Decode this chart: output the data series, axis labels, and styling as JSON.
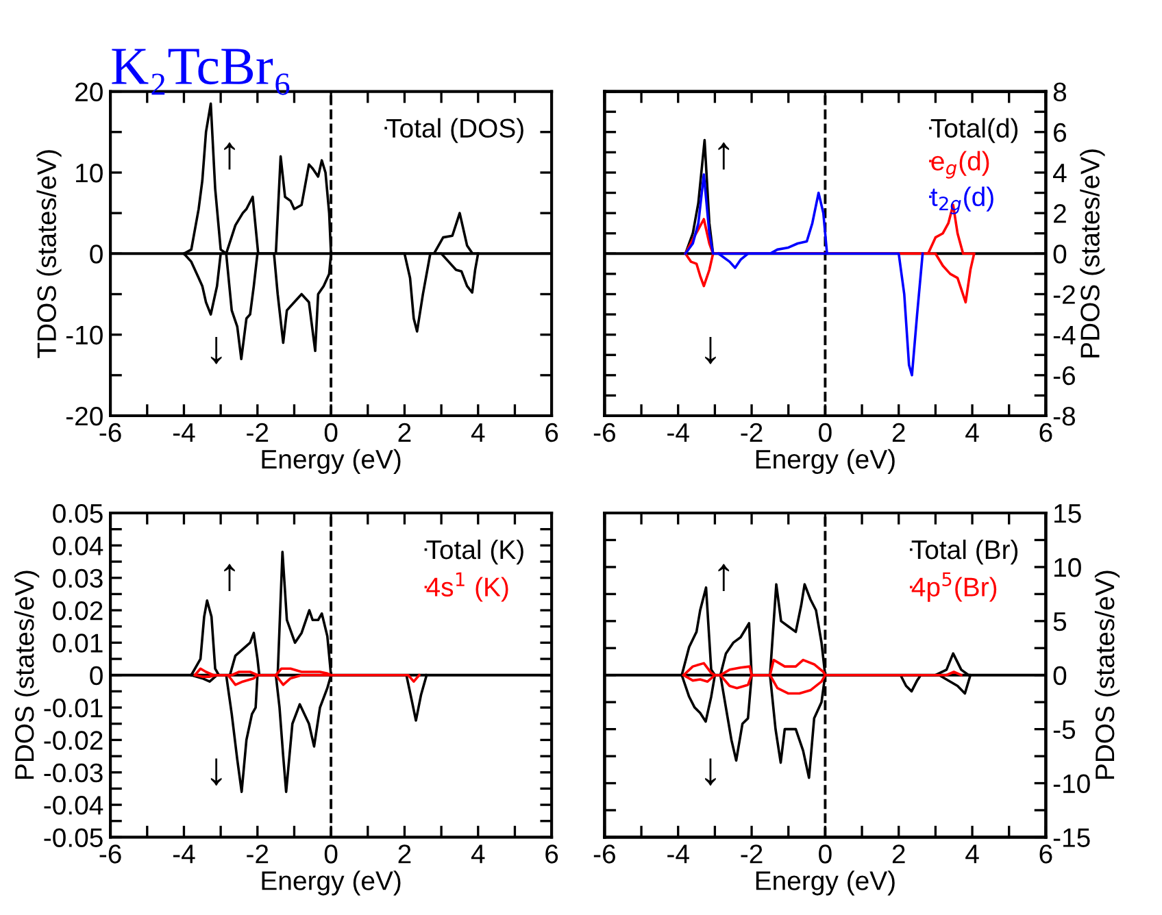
{
  "chart_data": [
    {
      "type": "line",
      "legend": "top right",
      "title": "K₂TcBr₆",
      "xlabel": "Energy (eV)",
      "ylabel": "TDOS (states/eV)",
      "xlim": [
        -6,
        6
      ],
      "xticks": [
        -6,
        {
          "value": -5,
          "label": null
        },
        -4,
        {
          "value": -3,
          "label": null
        },
        -2,
        {
          "value": -1,
          "label": null
        },
        0,
        {
          "value": 1,
          "label": null
        },
        2,
        {
          "value": 3,
          "label": null
        },
        4,
        {
          "value": 5,
          "label": null
        },
        6
      ],
      "ylim": [
        -20,
        20
      ],
      "yticks": [
        -20,
        {
          "value": -15,
          "label": null
        },
        -10,
        {
          "value": -5,
          "label": null
        },
        0,
        {
          "value": 5,
          "label": null
        },
        10,
        {
          "value": 15,
          "label": null
        },
        20
      ],
      "annotations": [
        "↑",
        "↓"
      ],
      "ref_lines": [
        {
          "axis": "x",
          "value": 0,
          "line_style": "dashed",
          "color": "#000000"
        },
        {
          "axis": "y",
          "value": 0,
          "line_style": "solid",
          "color": "#000000"
        }
      ],
      "series": [
        {
          "name": "Total (DOS)",
          "color": "#000000",
          "x": [
            -4.0,
            -3.8,
            -3.6,
            -3.5,
            -3.4,
            -3.27,
            -3.15,
            -3.0,
            -2.85,
            -2.6,
            -2.4,
            -2.3,
            -2.13,
            -1.98,
            -1.5,
            -1.37,
            -1.25,
            -1.1,
            -1.0,
            -0.8,
            -0.6,
            -0.5,
            -0.35,
            -0.25,
            -0.15,
            -0.05,
            0.0,
            2.8,
            3.05,
            3.3,
            3.5,
            3.7,
            3.85,
            4.0
          ],
          "values": [
            0,
            0.5,
            5.5,
            9,
            15,
            18.5,
            8,
            0.5,
            0,
            3.5,
            5,
            5.5,
            7,
            0,
            0,
            12,
            7,
            6.5,
            5.5,
            6,
            11,
            10.5,
            9.5,
            11.5,
            10,
            5,
            0,
            0,
            2,
            2.2,
            5,
            1,
            0,
            0
          ]
        },
        {
          "color": "#000000",
          "x": [
            -4.0,
            -3.8,
            -3.6,
            -3.5,
            -3.4,
            -3.27,
            -3.1,
            -3.0,
            -2.85,
            -2.7,
            -2.55,
            -2.44,
            -2.3,
            -2.2,
            -2.1,
            -2.0,
            -1.55,
            -1.45,
            -1.3,
            -1.2,
            -1.0,
            -0.8,
            -0.6,
            -0.43,
            -0.35,
            -0.2,
            -0.05,
            0.0,
            2.0,
            2.15,
            2.25,
            2.34,
            2.5,
            2.7,
            3.0,
            3.2,
            3.4,
            3.55,
            3.7,
            3.84,
            3.92,
            4.0
          ],
          "values": [
            0,
            -1,
            -3,
            -4,
            -6,
            -7.5,
            -4,
            0,
            0,
            -7,
            -9,
            -13,
            -8,
            -7.5,
            -4,
            0,
            0,
            -5,
            -11,
            -7,
            -6,
            -5,
            -6,
            -12,
            -5,
            -4,
            -2.5,
            0,
            0,
            -3,
            -8,
            -9.6,
            -5,
            0,
            0,
            -1,
            -2,
            -2.2,
            -4,
            -4.8,
            -2,
            0
          ]
        }
      ]
    },
    {
      "type": "line",
      "legend": "top right",
      "xlabel": "Energy (eV)",
      "y2label": "PDOS (states/eV)",
      "xlim": [
        -6,
        6
      ],
      "xticks": [
        -6,
        {
          "value": -5,
          "label": null
        },
        -4,
        {
          "value": -3,
          "label": null
        },
        -2,
        {
          "value": -1,
          "label": null
        },
        0,
        {
          "value": 1,
          "label": null
        },
        2,
        {
          "value": 3,
          "label": null
        },
        4,
        {
          "value": 5,
          "label": null
        },
        6
      ],
      "y2lim": [
        -8,
        8
      ],
      "y2ticks": [
        -8,
        {
          "value": -7,
          "label": null
        },
        -6,
        {
          "value": -5,
          "label": null
        },
        -4,
        {
          "value": -3,
          "label": null
        },
        -2,
        {
          "value": -1,
          "label": null
        },
        0,
        {
          "value": 1,
          "label": null
        },
        2,
        {
          "value": 3,
          "label": null
        },
        4,
        {
          "value": 5,
          "label": null
        },
        6,
        {
          "value": 7,
          "label": null
        },
        8
      ],
      "annotations": [
        "↑",
        "↓"
      ],
      "ref_lines": [
        {
          "axis": "x",
          "value": 0,
          "line_style": "dashed",
          "color": "#000000"
        },
        {
          "axis": "y2",
          "value": 0,
          "line_style": "solid",
          "color": "#000000"
        }
      ],
      "series": [
        {
          "name": "Total(d)",
          "color": "#000000",
          "axis": "y2",
          "x": [
            -3.9,
            -3.8,
            -3.6,
            -3.45,
            -3.28,
            -3.15,
            -3.05,
            -2.9
          ],
          "values": [
            0,
            0,
            1,
            2.5,
            5.6,
            1.5,
            0,
            0
          ]
        },
        {
          "name": "e$_{g}$(d)",
          "color": "#ff0000",
          "axis": "y2",
          "x": [
            -3.8,
            -3.6,
            -3.45,
            -3.3,
            -3.15,
            -3.05,
            2.8,
            3.0,
            3.2,
            3.35,
            3.48,
            3.6,
            3.75,
            4.0
          ],
          "values": [
            0,
            0.7,
            1.2,
            1.7,
            0.5,
            0,
            0,
            0.8,
            1.0,
            1.5,
            2.4,
            1.0,
            0,
            0
          ]
        },
        {
          "color": "#ff0000",
          "axis": "y2",
          "x": [
            -3.8,
            -3.65,
            -3.5,
            -3.4,
            -3.3,
            -3.15,
            -3.05,
            3.0,
            3.2,
            3.4,
            3.6,
            3.82,
            3.95,
            4.05
          ],
          "values": [
            0,
            -0.4,
            -0.5,
            -1.1,
            -1.6,
            -0.8,
            0,
            0,
            -0.6,
            -1.0,
            -1.2,
            -2.4,
            -0.8,
            0
          ]
        },
        {
          "name": "t$_{2g}$(d)",
          "color": "#0000ff",
          "axis": "y2",
          "x": [
            -3.8,
            -3.6,
            -3.45,
            -3.3,
            -3.15,
            -3.05,
            -1.5,
            -1.3,
            -1.0,
            -0.75,
            -0.5,
            -0.35,
            -0.18,
            -0.05,
            0.05
          ],
          "values": [
            0,
            0.5,
            1.5,
            3.9,
            1,
            0,
            0,
            0.2,
            0.3,
            0.5,
            0.6,
            1.5,
            3.0,
            2.0,
            0
          ]
        },
        {
          "color": "#0000ff",
          "axis": "y2",
          "x": [
            -2.9,
            -2.6,
            -2.45,
            -2.3,
            -2.1,
            2.0,
            2.15,
            2.28,
            2.36,
            2.5,
            2.65
          ],
          "values": [
            0,
            -0.4,
            -0.7,
            -0.3,
            0,
            0,
            -2,
            -5.5,
            -6.0,
            -3,
            0
          ]
        }
      ]
    },
    {
      "type": "line",
      "legend": "top right",
      "xlabel": "Energy (eV)",
      "ylabel": "PDOS (states/eV)",
      "xlim": [
        -6,
        6
      ],
      "xticks": [
        -6,
        {
          "value": -5,
          "label": null
        },
        -4,
        {
          "value": -3,
          "label": null
        },
        -2,
        {
          "value": -1,
          "label": null
        },
        0,
        {
          "value": 1,
          "label": null
        },
        2,
        {
          "value": 3,
          "label": null
        },
        4,
        {
          "value": 5,
          "label": null
        },
        6
      ],
      "ylim": [
        -0.05,
        0.05
      ],
      "yticks": [
        -0.05,
        {
          "value": -0.045,
          "label": null
        },
        -0.04,
        {
          "value": -0.035,
          "label": null
        },
        -0.03,
        {
          "value": -0.025,
          "label": null
        },
        -0.02,
        {
          "value": -0.015,
          "label": null
        },
        -0.01,
        {
          "value": -0.005,
          "label": null
        },
        0,
        {
          "value": 0.005,
          "label": null
        },
        0.01,
        {
          "value": 0.015,
          "label": null
        },
        0.02,
        {
          "value": 0.025,
          "label": null
        },
        0.03,
        {
          "value": 0.035,
          "label": null
        },
        0.04,
        {
          "value": 0.045,
          "label": null
        },
        0.05
      ],
      "annotations": [
        "↑",
        "↓"
      ],
      "ref_lines": [
        {
          "axis": "x",
          "value": 0,
          "line_style": "dashed",
          "color": "#000000"
        },
        {
          "axis": "y",
          "value": 0,
          "line_style": "solid",
          "color": "#000000"
        }
      ],
      "series": [
        {
          "name": "Total (K)",
          "color": "#000000",
          "x": [
            -3.8,
            -3.55,
            -3.45,
            -3.37,
            -3.25,
            -3.15,
            -3.05,
            -2.75,
            -2.6,
            -2.4,
            -2.2,
            -2.1,
            -2.0,
            -1.95,
            -1.45,
            -1.32,
            -1.2,
            -0.98,
            -0.8,
            -0.59,
            -0.5,
            -0.35,
            -0.25,
            -0.1,
            0.0
          ],
          "values": [
            0,
            0.005,
            0.018,
            0.023,
            0.018,
            0.002,
            0,
            0,
            0.006,
            0.008,
            0.01,
            0.013,
            0.005,
            0,
            0,
            0.038,
            0.017,
            0.01,
            0.013,
            0.02,
            0.017,
            0.017,
            0.019,
            0.012,
            0
          ]
        },
        {
          "color": "#000000",
          "x": [
            -3.8,
            -3.5,
            -3.3,
            -3.1,
            -2.85,
            -2.7,
            -2.55,
            -2.43,
            -2.3,
            -2.15,
            -2.05,
            -2.0,
            -1.5,
            -1.4,
            -1.3,
            -1.22,
            -1.05,
            -0.85,
            -0.6,
            -0.46,
            -0.3,
            -0.1,
            0.0,
            2.05,
            2.2,
            2.31,
            2.45,
            2.6
          ],
          "values": [
            0,
            -0.001,
            -0.002,
            0,
            0,
            -0.012,
            -0.026,
            -0.036,
            -0.02,
            -0.012,
            -0.01,
            0,
            0,
            -0.01,
            -0.025,
            -0.036,
            -0.015,
            -0.009,
            -0.015,
            -0.022,
            -0.01,
            -0.004,
            0,
            0,
            -0.008,
            -0.014,
            -0.006,
            0
          ]
        },
        {
          "name": "4s$^{1}$ (K)",
          "color": "#ff0000",
          "x": [
            -3.7,
            -3.55,
            -3.4,
            -3.2,
            -2.7,
            -2.5,
            -2.2,
            -2.0,
            -1.5,
            -1.35,
            -1.1,
            -0.8,
            -0.5,
            -0.3,
            -0.1,
            0.0
          ],
          "values": [
            0,
            0.002,
            0.001,
            0,
            0,
            0.001,
            0.001,
            0,
            0,
            0.002,
            0.002,
            0.001,
            0.001,
            0.001,
            0.0005,
            0
          ]
        },
        {
          "color": "#ff0000",
          "x": [
            -3.7,
            -3.5,
            -3.3,
            -3.1,
            -2.8,
            -2.6,
            -2.4,
            -2.1,
            -2.0,
            -1.5,
            -1.3,
            -1.1,
            -0.8,
            0.0,
            2.1,
            2.25,
            2.4
          ],
          "values": [
            0,
            -0.0005,
            -0.0005,
            0,
            0,
            -0.003,
            -0.002,
            -0.001,
            0,
            0,
            -0.003,
            -0.001,
            0,
            0,
            0,
            -0.002,
            0
          ]
        }
      ]
    },
    {
      "type": "line",
      "legend": "top right",
      "xlabel": "Energy (eV)",
      "y2label": "PDOS (states/eV)",
      "xlim": [
        -6,
        6
      ],
      "xticks": [
        -6,
        {
          "value": -5,
          "label": null
        },
        -4,
        {
          "value": -3,
          "label": null
        },
        -2,
        {
          "value": -1,
          "label": null
        },
        0,
        {
          "value": 1,
          "label": null
        },
        2,
        {
          "value": 3,
          "label": null
        },
        4,
        {
          "value": 5,
          "label": null
        },
        6
      ],
      "y2lim": [
        -15,
        15
      ],
      "y2ticks": [
        -15,
        {
          "value": -12.5,
          "label": null
        },
        -10,
        {
          "value": -7.5,
          "label": null
        },
        -5,
        {
          "value": -2.5,
          "label": null
        },
        0,
        {
          "value": 2.5,
          "label": null
        },
        5,
        {
          "value": 7.5,
          "label": null
        },
        10,
        {
          "value": 12.5,
          "label": null
        },
        15
      ],
      "annotations": [
        "↑",
        "↓"
      ],
      "ref_lines": [
        {
          "axis": "x",
          "value": 0,
          "line_style": "dashed",
          "color": "#000000"
        },
        {
          "axis": "y2",
          "value": 0,
          "line_style": "solid",
          "color": "#000000"
        }
      ],
      "series": [
        {
          "name": "Total (Br)",
          "color": "#000000",
          "axis": "y2",
          "x": [
            -3.9,
            -3.7,
            -3.5,
            -3.4,
            -3.24,
            -3.1,
            -3.0,
            -2.85,
            -2.7,
            -2.5,
            -2.3,
            -2.07,
            -2.0,
            -1.5,
            -1.33,
            -1.2,
            -1.0,
            -0.8,
            -0.65,
            -0.56,
            -0.4,
            -0.25,
            -0.1,
            0.0,
            3.0,
            3.3,
            3.48,
            3.7,
            3.9
          ],
          "values": [
            0,
            2.6,
            4,
            6,
            8.1,
            0.5,
            0,
            0,
            2,
            3,
            3.5,
            4.8,
            0,
            0,
            8.4,
            5,
            4.5,
            4,
            6.5,
            8.4,
            7,
            6,
            3,
            0,
            0,
            0.5,
            2.0,
            0.5,
            0
          ]
        },
        {
          "color": "#000000",
          "axis": "y2",
          "x": [
            -3.9,
            -3.7,
            -3.55,
            -3.4,
            -3.25,
            -3.1,
            -3.0,
            -2.85,
            -2.7,
            -2.55,
            -2.42,
            -2.25,
            -2.1,
            -2.0,
            -1.5,
            -1.35,
            -1.21,
            -1.1,
            -0.8,
            -0.6,
            -0.44,
            -0.3,
            -0.1,
            0.0,
            2.05,
            2.2,
            2.35,
            2.5,
            2.6,
            3.1,
            3.4,
            3.6,
            3.8,
            3.95
          ],
          "values": [
            0,
            -2,
            -3,
            -3.5,
            -4.3,
            -2,
            0,
            0,
            -3,
            -6,
            -7.9,
            -4.5,
            -4,
            0,
            0,
            -5,
            -8.1,
            -5,
            -5,
            -7,
            -9.5,
            -4,
            -2.5,
            0,
            0,
            -1,
            -1.5,
            -0.5,
            0,
            0,
            -0.6,
            -1,
            -1.7,
            0
          ]
        },
        {
          "name": "4p$^{5}$(Br)",
          "color": "#ff0000",
          "axis": "y2",
          "x": [
            -3.85,
            -3.6,
            -3.3,
            -3.1,
            -3.0,
            -2.85,
            -2.6,
            -2.3,
            -2.05,
            -2.0,
            -1.5,
            -1.4,
            -1.1,
            -0.8,
            -0.6,
            -0.3,
            -0.05,
            0.0,
            3.3,
            3.5,
            3.7
          ],
          "values": [
            0,
            0.8,
            1.1,
            0.2,
            0,
            0,
            0.5,
            0.7,
            0.8,
            0,
            0,
            1.4,
            0.8,
            0.8,
            1.4,
            1.0,
            0.3,
            0,
            0,
            0.3,
            0
          ]
        },
        {
          "color": "#ff0000",
          "axis": "y2",
          "x": [
            -3.85,
            -3.6,
            -3.4,
            -3.2,
            -3.0,
            -2.85,
            -2.6,
            -2.4,
            -2.1,
            -2.0,
            -1.5,
            -1.3,
            -1.0,
            -0.7,
            -0.4,
            -0.1,
            0.0
          ],
          "values": [
            0,
            -0.5,
            -0.4,
            -0.6,
            0,
            0,
            -1.0,
            -1.2,
            -0.9,
            0,
            0,
            -1.2,
            -1.7,
            -1.7,
            -1.4,
            -0.6,
            0
          ]
        }
      ]
    }
  ]
}
